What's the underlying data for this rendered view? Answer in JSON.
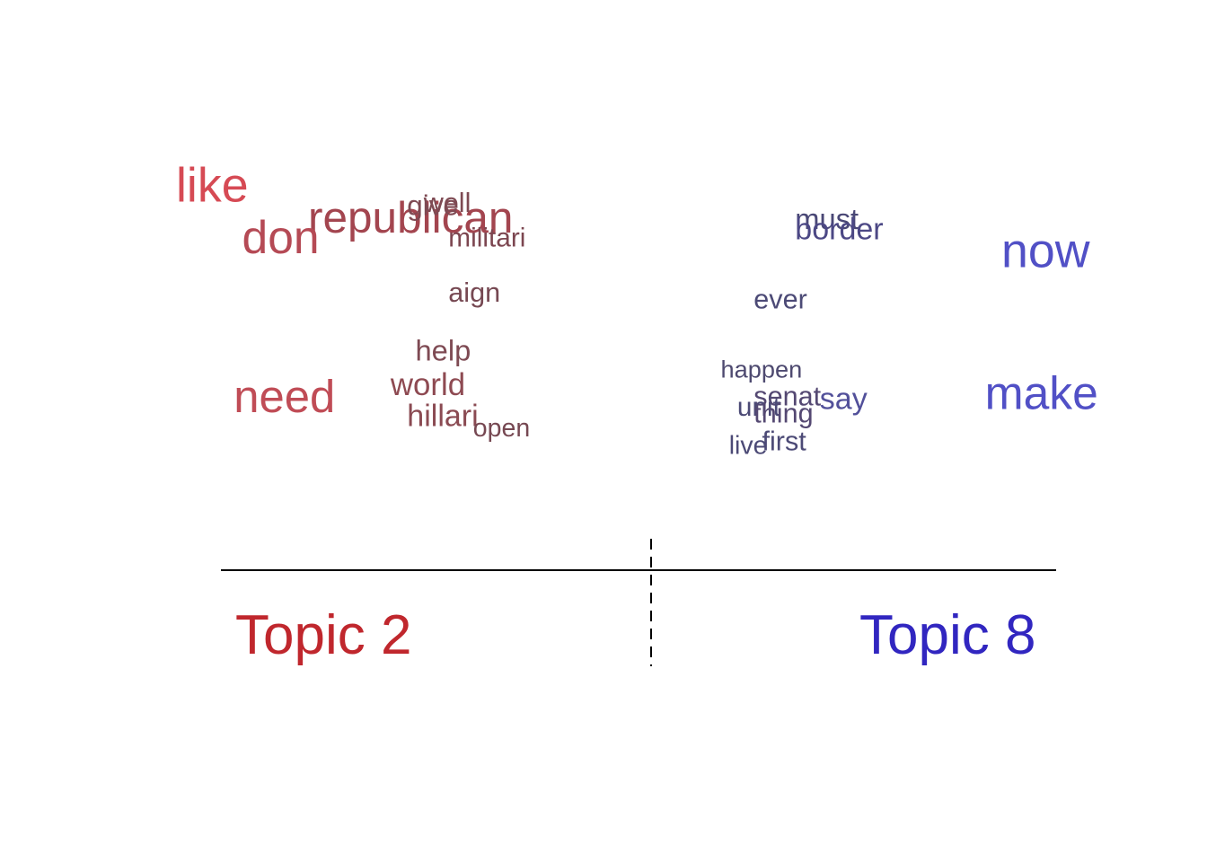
{
  "chart_data": {
    "type": "scatter",
    "description_kind": "word-contrast-plot",
    "topics": [
      {
        "label": "Topic 2",
        "color": "#c0272d",
        "side": "left"
      },
      {
        "label": "Topic 8",
        "color": "#3126c0",
        "side": "right"
      }
    ],
    "words": [
      {
        "word": "like",
        "x": 0.0,
        "y": 0.95,
        "weight": 0.85,
        "color": "#d64a54"
      },
      {
        "word": "republican",
        "x": 0.16,
        "y": 0.86,
        "weight": 0.75,
        "color": "#a3454f"
      },
      {
        "word": "don",
        "x": 0.08,
        "y": 0.8,
        "weight": 0.8,
        "color": "#b54a55"
      },
      {
        "word": "well",
        "x": 0.3,
        "y": 0.92,
        "weight": 0.3,
        "color": "#7e4a53"
      },
      {
        "word": "give",
        "x": 0.28,
        "y": 0.91,
        "weight": 0.32,
        "color": "#7e4a53"
      },
      {
        "word": "militari",
        "x": 0.33,
        "y": 0.82,
        "weight": 0.28,
        "color": "#7c4650"
      },
      {
        "word": "aign",
        "x": 0.33,
        "y": 0.66,
        "weight": 0.3,
        "color": "#764852"
      },
      {
        "word": "help",
        "x": 0.29,
        "y": 0.49,
        "weight": 0.35,
        "color": "#7e4a53"
      },
      {
        "word": "world",
        "x": 0.26,
        "y": 0.39,
        "weight": 0.4,
        "color": "#8e4a52"
      },
      {
        "word": "need",
        "x": 0.07,
        "y": 0.34,
        "weight": 0.78,
        "color": "#c04c56"
      },
      {
        "word": "hillari",
        "x": 0.28,
        "y": 0.3,
        "weight": 0.38,
        "color": "#8a4a52"
      },
      {
        "word": "open",
        "x": 0.36,
        "y": 0.27,
        "weight": 0.25,
        "color": "#764852"
      },
      {
        "word": "must",
        "x": 0.75,
        "y": 0.87,
        "weight": 0.35,
        "color": "#4a4876"
      },
      {
        "word": "border",
        "x": 0.75,
        "y": 0.84,
        "weight": 0.38,
        "color": "#4c4885"
      },
      {
        "word": "now",
        "x": 1.0,
        "y": 0.76,
        "weight": 0.85,
        "color": "#5150c6"
      },
      {
        "word": "ever",
        "x": 0.7,
        "y": 0.64,
        "weight": 0.3,
        "color": "#4c4a76"
      },
      {
        "word": "happen",
        "x": 0.66,
        "y": 0.44,
        "weight": 0.22,
        "color": "#4e4a70"
      },
      {
        "word": "make",
        "x": 0.98,
        "y": 0.35,
        "weight": 0.8,
        "color": "#5150c6"
      },
      {
        "word": "senat",
        "x": 0.7,
        "y": 0.36,
        "weight": 0.3,
        "color": "#544872"
      },
      {
        "word": "say",
        "x": 0.78,
        "y": 0.35,
        "weight": 0.38,
        "color": "#52509a"
      },
      {
        "word": "unit",
        "x": 0.68,
        "y": 0.33,
        "weight": 0.28,
        "color": "#4c4a76"
      },
      {
        "word": "thing",
        "x": 0.7,
        "y": 0.31,
        "weight": 0.3,
        "color": "#544872"
      },
      {
        "word": "first",
        "x": 0.71,
        "y": 0.23,
        "weight": 0.3,
        "color": "#4c4a76"
      },
      {
        "word": "live",
        "x": 0.67,
        "y": 0.22,
        "weight": 0.25,
        "color": "#4c4a76"
      }
    ],
    "xlabel": "",
    "ylabel": "",
    "grid": false,
    "divider": "dashed-vertical-center"
  }
}
